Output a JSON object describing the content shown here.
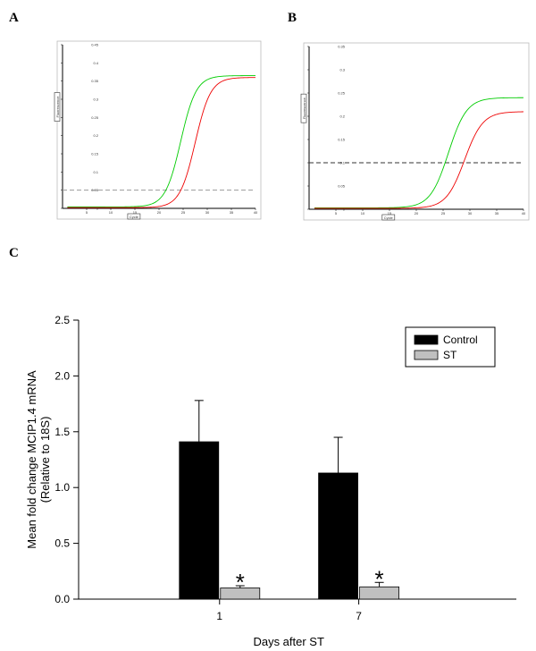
{
  "panels": {
    "a": "A",
    "b": "B",
    "c": "C"
  },
  "chart_data": [
    {
      "panel": "A",
      "type": "line",
      "ylabel": "Fluorescence",
      "xlabel": "Cycle",
      "xlim": [
        0,
        40
      ],
      "ylim": [
        0,
        0.45
      ],
      "x_ticks": [
        "5",
        "10",
        "15",
        "20",
        "25",
        "30",
        "35",
        "40"
      ],
      "y_ticks": [
        "0",
        "0.05",
        "0.1",
        "0.15",
        "0.2",
        "0.25",
        "0.3",
        "0.35",
        "0.4",
        "0.45"
      ],
      "threshold": 0.05,
      "series": [
        {
          "color": "#00cc00",
          "midpoint": 24.5,
          "slope": 1.6,
          "plateau": 0.365,
          "baseline": 0.004
        },
        {
          "color": "#ee0000",
          "midpoint": 27.5,
          "slope": 1.6,
          "plateau": 0.36,
          "baseline": 0.002
        }
      ]
    },
    {
      "panel": "B",
      "type": "line",
      "ylabel": "Fluorescence",
      "xlabel": "Cycle",
      "xlim": [
        0,
        40
      ],
      "ylim": [
        0,
        0.35
      ],
      "x_ticks": [
        "5",
        "10",
        "15",
        "20",
        "25",
        "30",
        "35",
        "40"
      ],
      "y_ticks": [
        "0",
        "0.05",
        "0.1",
        "0.15",
        "0.2",
        "0.25",
        "0.3",
        "0.35"
      ],
      "threshold": 0.1,
      "series": [
        {
          "color": "#00cc00",
          "midpoint": 26.0,
          "slope": 1.7,
          "plateau": 0.24,
          "baseline": 0.003
        },
        {
          "color": "#ee0000",
          "midpoint": 29.0,
          "slope": 1.7,
          "plateau": 0.21,
          "baseline": 0.002
        }
      ]
    },
    {
      "panel": "C",
      "type": "bar",
      "ylabel": "Mean fold change MCIP1.4 mRNA\n(Relative to 18S)",
      "xlabel": "Days after ST",
      "categories": [
        "1",
        "7"
      ],
      "ylim": [
        0,
        2.5
      ],
      "y_ticks": [
        "0.0",
        "0.5",
        "1.0",
        "1.5",
        "2.0",
        "2.5"
      ],
      "legend_position": "top-right",
      "significance_marker": "*",
      "series": [
        {
          "name": "Control",
          "color": "#000000",
          "values": [
            1.41,
            1.13
          ],
          "errors": [
            0.37,
            0.32
          ]
        },
        {
          "name": "ST",
          "color": "#c0c0c0",
          "values": [
            0.1,
            0.11
          ],
          "errors": [
            0.02,
            0.04
          ],
          "significant": [
            true,
            true
          ]
        }
      ]
    }
  ]
}
